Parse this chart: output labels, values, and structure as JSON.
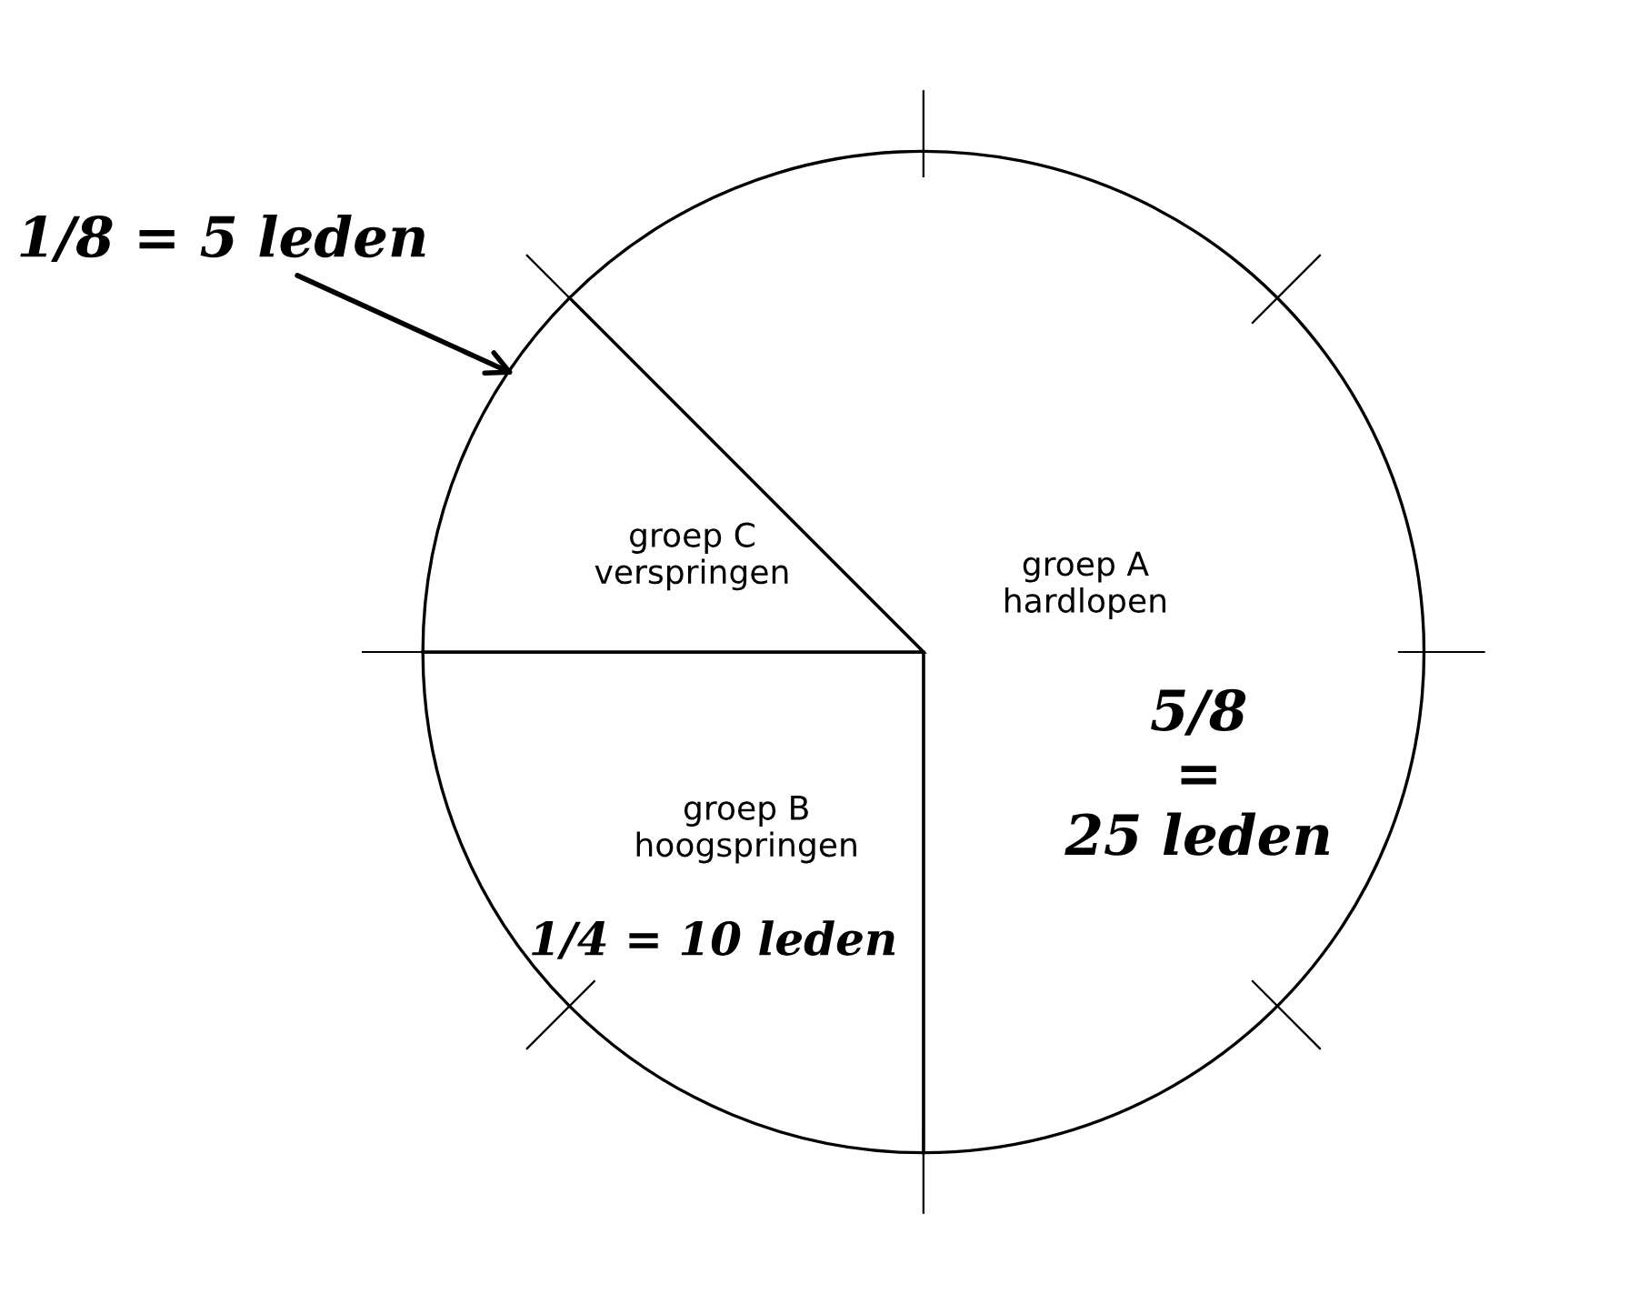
{
  "chart_data": {
    "type": "pie",
    "categories": [
      "groep A\nhardlopen",
      "groep B\nhoogspringen",
      "groep C\nverspringen"
    ],
    "values": [
      62.5,
      25,
      12.5
    ],
    "colors": [
      "#ffffff",
      "#ffffff",
      "#ffffff"
    ],
    "annotations": [
      "5/8 = 25 leden",
      "1/4 = 10 leden",
      "1/8 = 5 leden"
    ]
  }
}
